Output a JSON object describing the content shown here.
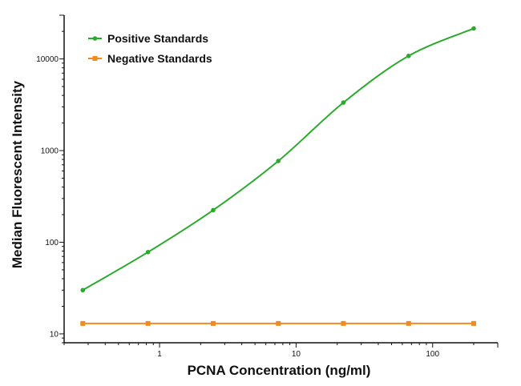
{
  "chart_data": {
    "type": "line",
    "title": "",
    "xlabel": "PCNA Concentration (ng/ml)",
    "ylabel": "Median Fluorescent Intensity",
    "xscale": "log",
    "yscale": "log",
    "xlim": [
      0.2,
      300
    ],
    "ylim": [
      8,
      30000
    ],
    "x_ticks": [
      {
        "value": 1,
        "label": "1"
      },
      {
        "value": 10,
        "label": "10"
      },
      {
        "value": 100,
        "label": "100"
      }
    ],
    "y_ticks": [
      {
        "value": 10,
        "label": "10"
      },
      {
        "value": 100,
        "label": "100"
      },
      {
        "value": 1000,
        "label": "1000"
      },
      {
        "value": 10000,
        "label": "10000"
      }
    ],
    "grid": false,
    "legend_position": "top-left",
    "series": [
      {
        "name": "Positive Standards",
        "color": "#2aaa2a",
        "marker": "circle",
        "fit": "smooth curve",
        "x": [
          0.274,
          0.823,
          2.47,
          7.41,
          22.2,
          66.7,
          200
        ],
        "y": [
          30,
          78,
          224,
          770,
          3340,
          10800,
          21500
        ]
      },
      {
        "name": "Negative Standards",
        "color": "#f28a1e",
        "marker": "square",
        "fit": "line",
        "x": [
          0.274,
          0.823,
          2.47,
          7.41,
          22.2,
          66.7,
          200
        ],
        "y": [
          13,
          13,
          13,
          13,
          13,
          13,
          13
        ]
      }
    ]
  }
}
